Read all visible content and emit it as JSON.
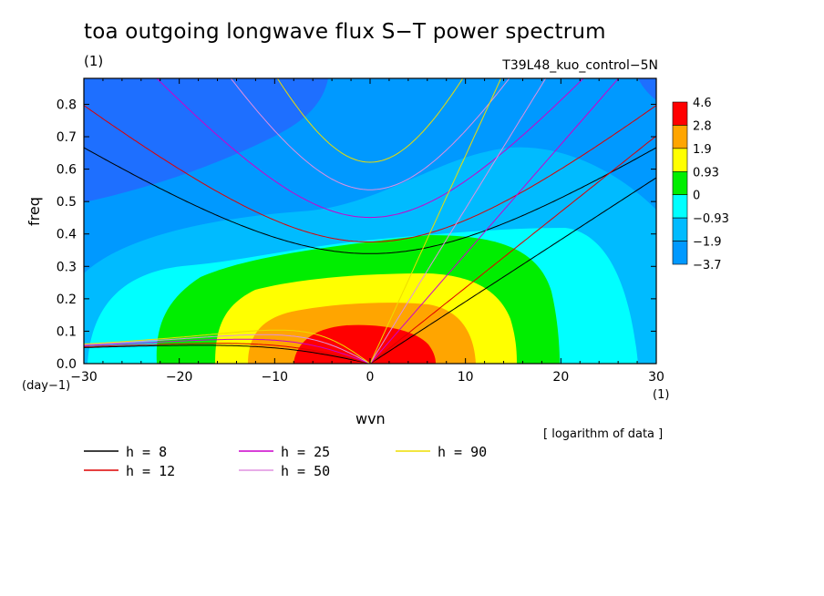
{
  "chart_data": {
    "type": "heatmap",
    "title": "toa outgoing longwave flux S−T power spectrum",
    "units_label": "(1)",
    "run_label": "T39L48_kuo_control−5N",
    "xlabel": "wvn",
    "ylabel": "freq",
    "x_unit": "(1)",
    "y_unit": "(day−1)",
    "note": "[ logarithm of data ]",
    "xlim": [
      -30,
      30
    ],
    "ylim": [
      0,
      0.88
    ],
    "x_ticks": [
      "−30",
      "−20",
      "−10",
      "0",
      "10",
      "20",
      "30"
    ],
    "x_tick_values": [
      -30,
      -20,
      -10,
      0,
      10,
      20,
      30
    ],
    "y_ticks": [
      "0.0",
      "0.1",
      "0.2",
      "0.3",
      "0.4",
      "0.5",
      "0.6",
      "0.7",
      "0.8"
    ],
    "y_tick_values": [
      0,
      0.1,
      0.2,
      0.3,
      0.4,
      0.5,
      0.6,
      0.7,
      0.8
    ],
    "colorbar": {
      "levels": [
        "4.6",
        "2.8",
        "1.9",
        "0.93",
        "0",
        "−0.93",
        "−1.9",
        "−3.7"
      ],
      "colors": [
        "#ff0000",
        "#ffa500",
        "#ffff00",
        "#00ee00",
        "#00ffff",
        "#00bbff",
        "#0099ff",
        "#1e6fff"
      ]
    },
    "field_colors": [
      "#1e6fff",
      "#0099ff",
      "#00bbff",
      "#00ffff",
      "#00ee00",
      "#ffff00",
      "#ffa500",
      "#ff0000"
    ],
    "dispersion_curves": [
      {
        "label": "h =  8",
        "h": 8,
        "color": "#000000"
      },
      {
        "label": "h = 12",
        "h": 12,
        "color": "#dd0000"
      },
      {
        "label": "h = 25",
        "h": 25,
        "color": "#cc00cc"
      },
      {
        "label": "h = 50",
        "h": 50,
        "color": "#e090e0"
      },
      {
        "label": "h = 90",
        "h": 90,
        "color": "#eedd00"
      }
    ]
  }
}
